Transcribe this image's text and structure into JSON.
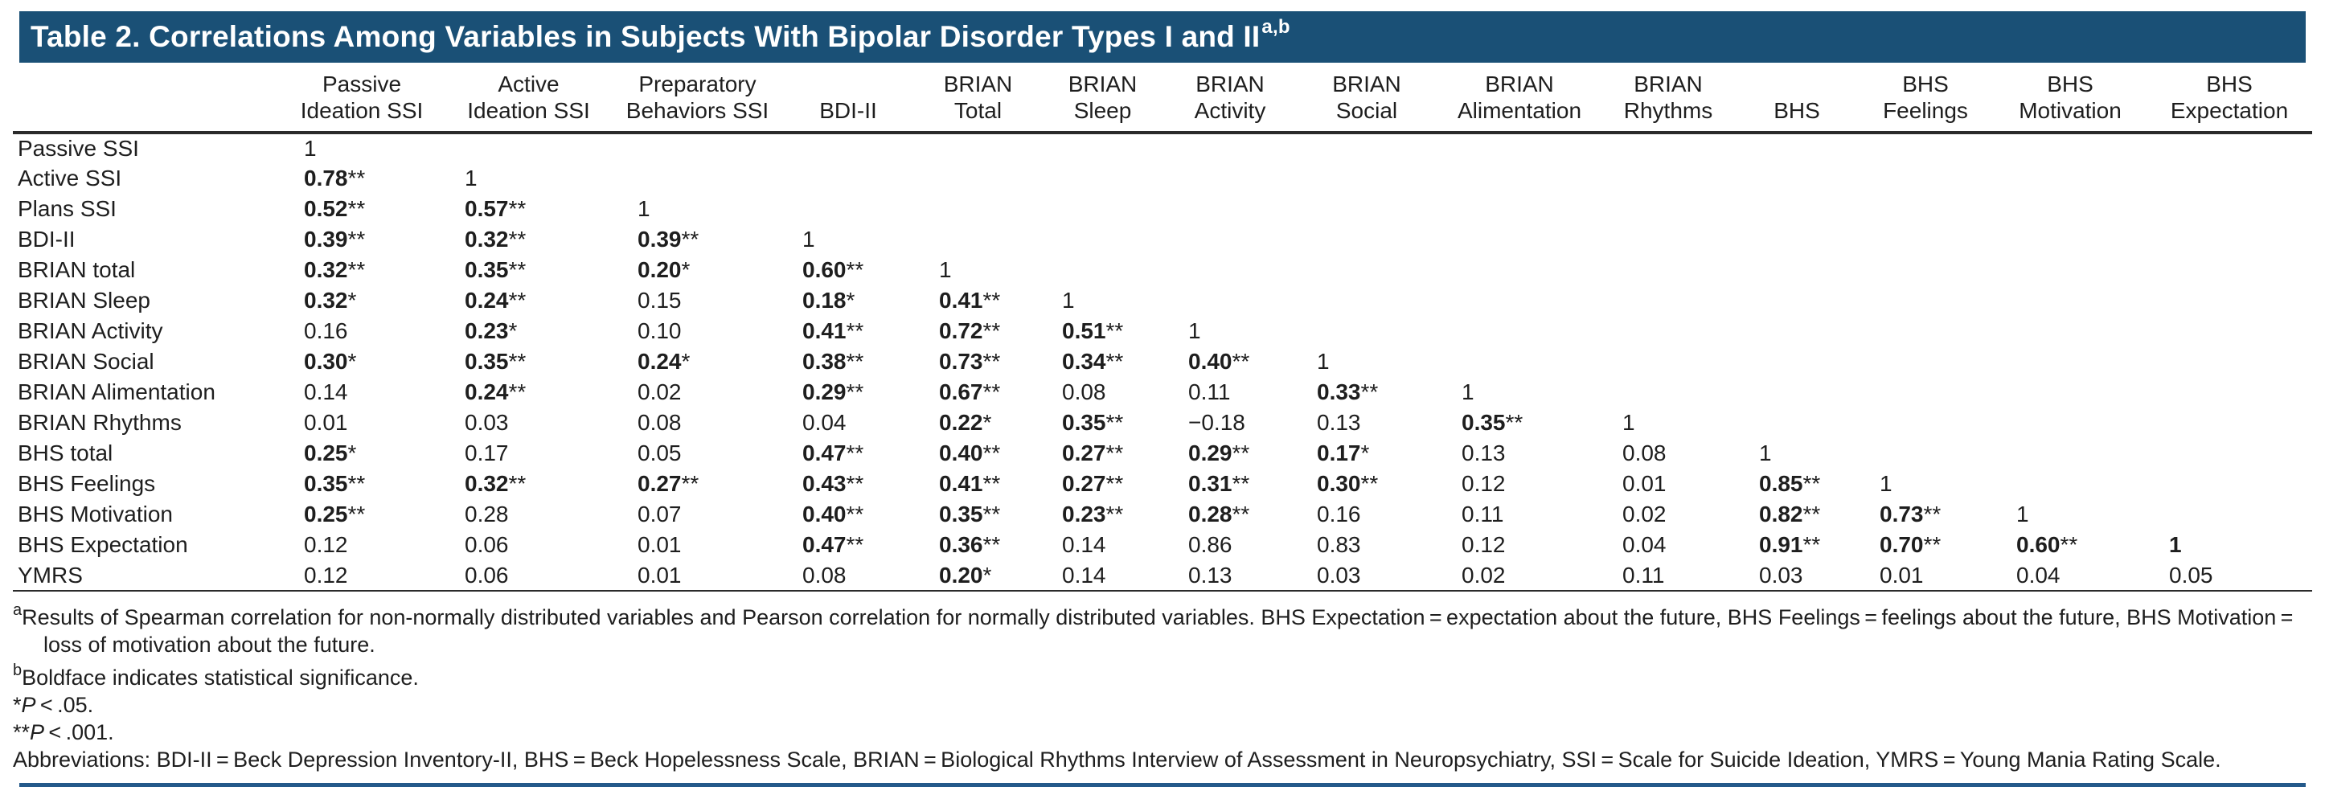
{
  "colors": {
    "header_bar": "#1a5076",
    "bottom_rule": "#24598a",
    "rule_dark": "#2b2b2b",
    "text": "#1e1e1e"
  },
  "title": {
    "text": "Table 2. Correlations Among Variables in Subjects With Bipolar Disorder Types I and II",
    "superscript": "a,b"
  },
  "table": {
    "columns": [
      {
        "line1": "Passive",
        "line2": "Ideation SSI"
      },
      {
        "line1": "Active",
        "line2": "Ideation SSI"
      },
      {
        "line1": "Preparatory",
        "line2": "Behaviors SSI"
      },
      {
        "line1": "",
        "line2": "BDI-II"
      },
      {
        "line1": "BRIAN",
        "line2": "Total"
      },
      {
        "line1": "BRIAN",
        "line2": "Sleep"
      },
      {
        "line1": "BRIAN",
        "line2": "Activity"
      },
      {
        "line1": "BRIAN",
        "line2": "Social"
      },
      {
        "line1": "BRIAN",
        "line2": "Alimentation"
      },
      {
        "line1": "BRIAN",
        "line2": "Rhythms"
      },
      {
        "line1": "",
        "line2": "BHS"
      },
      {
        "line1": "BHS",
        "line2": "Feelings"
      },
      {
        "line1": "BHS",
        "line2": "Motivation"
      },
      {
        "line1": "BHS",
        "line2": "Expectation"
      }
    ],
    "rows": [
      {
        "label": "Passive SSI",
        "cells": [
          {
            "v": "1"
          }
        ]
      },
      {
        "label": "Active SSI",
        "cells": [
          {
            "v": "0.78",
            "s": "**",
            "b": true
          },
          {
            "v": "1"
          }
        ]
      },
      {
        "label": "Plans SSI",
        "cells": [
          {
            "v": "0.52",
            "s": "**",
            "b": true
          },
          {
            "v": "0.57",
            "s": "**",
            "b": true
          },
          {
            "v": "1"
          }
        ]
      },
      {
        "label": "BDI-II",
        "cells": [
          {
            "v": "0.39",
            "s": "**",
            "b": true
          },
          {
            "v": "0.32",
            "s": "**",
            "b": true
          },
          {
            "v": "0.39",
            "s": "**",
            "b": true
          },
          {
            "v": "1"
          }
        ]
      },
      {
        "label": "BRIAN total",
        "cells": [
          {
            "v": "0.32",
            "s": "**",
            "b": true
          },
          {
            "v": "0.35",
            "s": "**",
            "b": true
          },
          {
            "v": "0.20",
            "s": "*",
            "b": true
          },
          {
            "v": "0.60",
            "s": "**",
            "b": true
          },
          {
            "v": "1"
          }
        ]
      },
      {
        "label": "BRIAN Sleep",
        "cells": [
          {
            "v": "0.32",
            "s": "*",
            "b": true
          },
          {
            "v": "0.24",
            "s": "**",
            "b": true
          },
          {
            "v": "0.15"
          },
          {
            "v": "0.18",
            "s": "*",
            "b": true
          },
          {
            "v": "0.41",
            "s": "**",
            "b": true
          },
          {
            "v": "1"
          }
        ]
      },
      {
        "label": "BRIAN Activity",
        "cells": [
          {
            "v": "0.16"
          },
          {
            "v": "0.23",
            "s": "*",
            "b": true
          },
          {
            "v": "0.10"
          },
          {
            "v": "0.41",
            "s": "**",
            "b": true
          },
          {
            "v": "0.72",
            "s": "**",
            "b": true
          },
          {
            "v": "0.51",
            "s": "**",
            "b": true
          },
          {
            "v": "1"
          }
        ]
      },
      {
        "label": "BRIAN Social",
        "cells": [
          {
            "v": "0.30",
            "s": "*",
            "b": true
          },
          {
            "v": "0.35",
            "s": "**",
            "b": true
          },
          {
            "v": "0.24",
            "s": "*",
            "b": true
          },
          {
            "v": "0.38",
            "s": "**",
            "b": true
          },
          {
            "v": "0.73",
            "s": "**",
            "b": true
          },
          {
            "v": "0.34",
            "s": "**",
            "b": true
          },
          {
            "v": "0.40",
            "s": "**",
            "b": true
          },
          {
            "v": "1"
          }
        ]
      },
      {
        "label": "BRIAN Alimentation",
        "cells": [
          {
            "v": "0.14"
          },
          {
            "v": "0.24",
            "s": "**",
            "b": true
          },
          {
            "v": "0.02"
          },
          {
            "v": "0.29",
            "s": "**",
            "b": true
          },
          {
            "v": "0.67",
            "s": "**",
            "b": true
          },
          {
            "v": "0.08"
          },
          {
            "v": "0.11"
          },
          {
            "v": "0.33",
            "s": "**",
            "b": true
          },
          {
            "v": "1"
          }
        ]
      },
      {
        "label": "BRIAN Rhythms",
        "cells": [
          {
            "v": "0.01"
          },
          {
            "v": "0.03"
          },
          {
            "v": "0.08"
          },
          {
            "v": "0.04"
          },
          {
            "v": "0.22",
            "s": "*",
            "b": true
          },
          {
            "v": "0.35",
            "s": "**",
            "b": true
          },
          {
            "v": "−0.18"
          },
          {
            "v": "0.13"
          },
          {
            "v": "0.35",
            "s": "**",
            "b": true
          },
          {
            "v": "1"
          }
        ]
      },
      {
        "label": "BHS total",
        "cells": [
          {
            "v": "0.25",
            "s": "*",
            "b": true
          },
          {
            "v": "0.17"
          },
          {
            "v": "0.05"
          },
          {
            "v": "0.47",
            "s": "**",
            "b": true
          },
          {
            "v": "0.40",
            "s": "**",
            "b": true
          },
          {
            "v": "0.27",
            "s": "**",
            "b": true
          },
          {
            "v": "0.29",
            "s": "**",
            "b": true
          },
          {
            "v": "0.17",
            "s": "*",
            "b": true
          },
          {
            "v": "0.13"
          },
          {
            "v": "0.08"
          },
          {
            "v": "1"
          }
        ]
      },
      {
        "label": "BHS Feelings",
        "cells": [
          {
            "v": "0.35",
            "s": "**",
            "b": true
          },
          {
            "v": "0.32",
            "s": "**",
            "b": true
          },
          {
            "v": "0.27",
            "s": "**",
            "b": true
          },
          {
            "v": "0.43",
            "s": "**",
            "b": true
          },
          {
            "v": "0.41",
            "s": "**",
            "b": true
          },
          {
            "v": "0.27",
            "s": "**",
            "b": true
          },
          {
            "v": "0.31",
            "s": "**",
            "b": true
          },
          {
            "v": "0.30",
            "s": "**",
            "b": true
          },
          {
            "v": "0.12"
          },
          {
            "v": "0.01"
          },
          {
            "v": "0.85",
            "s": "**",
            "b": true
          },
          {
            "v": "1"
          }
        ]
      },
      {
        "label": "BHS Motivation",
        "cells": [
          {
            "v": "0.25",
            "s": "**",
            "b": true
          },
          {
            "v": "0.28"
          },
          {
            "v": "0.07"
          },
          {
            "v": "0.40",
            "s": "**",
            "b": true
          },
          {
            "v": "0.35",
            "s": "**",
            "b": true
          },
          {
            "v": "0.23",
            "s": "**",
            "b": true
          },
          {
            "v": "0.28",
            "s": "**",
            "b": true
          },
          {
            "v": "0.16"
          },
          {
            "v": "0.11"
          },
          {
            "v": "0.02"
          },
          {
            "v": "0.82",
            "s": "**",
            "b": true
          },
          {
            "v": "0.73",
            "s": "**",
            "b": true
          },
          {
            "v": "1"
          }
        ]
      },
      {
        "label": "BHS Expectation",
        "cells": [
          {
            "v": "0.12"
          },
          {
            "v": "0.06"
          },
          {
            "v": "0.01"
          },
          {
            "v": "0.47",
            "s": "**",
            "b": true
          },
          {
            "v": "0.36",
            "s": "**",
            "b": true
          },
          {
            "v": "0.14"
          },
          {
            "v": "0.86"
          },
          {
            "v": "0.83"
          },
          {
            "v": "0.12"
          },
          {
            "v": "0.04"
          },
          {
            "v": "0.91",
            "s": "**",
            "b": true
          },
          {
            "v": "0.70",
            "s": "**",
            "b": true
          },
          {
            "v": "0.60",
            "s": "**",
            "b": true
          },
          {
            "v": "1",
            "b": true
          }
        ]
      },
      {
        "label": "YMRS",
        "cells": [
          {
            "v": "0.12"
          },
          {
            "v": "0.06"
          },
          {
            "v": "0.01"
          },
          {
            "v": "0.08"
          },
          {
            "v": "0.20",
            "s": "*",
            "b": true
          },
          {
            "v": "0.14"
          },
          {
            "v": "0.13"
          },
          {
            "v": "0.03"
          },
          {
            "v": "0.02"
          },
          {
            "v": "0.11"
          },
          {
            "v": "0.03"
          },
          {
            "v": "0.01"
          },
          {
            "v": "0.04"
          },
          {
            "v": "0.05"
          }
        ]
      }
    ]
  },
  "footnotes": {
    "a": {
      "mark": "a",
      "text": "Results of Spearman correlation for non-normally distributed variables and Pearson correlation for normally distributed variables. BHS Expectation = expectation about the future, BHS Feelings = feelings about the future, BHS Motivation = loss of motivation about the future."
    },
    "b": {
      "mark": "b",
      "text": "Boldface indicates statistical significance."
    },
    "p05": {
      "stars": "*",
      "p": "P",
      "rest": " < .05."
    },
    "p001": {
      "stars": "**",
      "p": "P",
      "rest": " < .001."
    },
    "abbreviations": "Abbreviations: BDI-II = Beck Depression Inventory-II, BHS = Beck Hopelessness Scale, BRIAN = Biological Rhythms Interview of Assessment in Neuropsychiatry, SSI = Scale for Suicide Ideation, YMRS = Young Mania Rating Scale."
  }
}
